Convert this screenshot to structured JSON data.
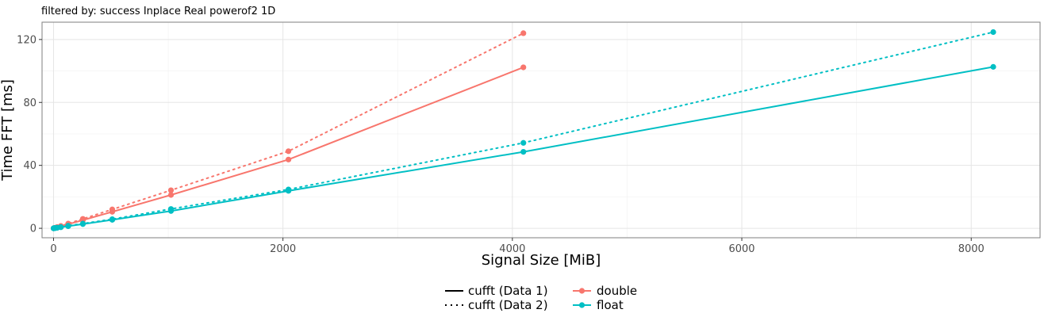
{
  "chart_data": {
    "type": "line",
    "subtitle": "filtered by: success Inplace Real powerof2 1D",
    "xlabel": "Signal Size [MiB]",
    "ylabel": "Time FFT [ms]",
    "xlim": [
      -100,
      8600
    ],
    "ylim": [
      -6,
      131
    ],
    "x_ticks": [
      0,
      2000,
      4000,
      6000,
      8000
    ],
    "y_ticks": [
      0,
      40,
      80,
      120
    ],
    "grid": true,
    "legend_position": "bottom",
    "linetype_legend": [
      {
        "label": "cufft (Data 1)",
        "linetype": "solid"
      },
      {
        "label": "cufft (Data 2)",
        "linetype": "dotted"
      }
    ],
    "color_legend": [
      {
        "label": "double",
        "color": "#F8766D"
      },
      {
        "label": "float",
        "color": "#00BFC4"
      }
    ],
    "series": [
      {
        "precision": "double",
        "data_set": "cufft (Data 1)",
        "color": "#F8766D",
        "linetype": "solid",
        "x": [
          1,
          2,
          4,
          8,
          16,
          32,
          64,
          128,
          256,
          512,
          1024,
          2048,
          4096
        ],
        "y": [
          0.02,
          0.04,
          0.08,
          0.17,
          0.33,
          0.65,
          1.3,
          2.6,
          5.2,
          10.5,
          21.2,
          43.7,
          102.3
        ]
      },
      {
        "precision": "double",
        "data_set": "cufft (Data 2)",
        "color": "#F8766D",
        "linetype": "dotted",
        "x": [
          1,
          2,
          4,
          8,
          16,
          32,
          64,
          128,
          256,
          512,
          1024,
          2048,
          4096
        ],
        "y": [
          0.03,
          0.05,
          0.1,
          0.2,
          0.4,
          0.8,
          1.5,
          3.0,
          6.0,
          12.0,
          24.2,
          49.0,
          124.0
        ]
      },
      {
        "precision": "float",
        "data_set": "cufft (Data 1)",
        "color": "#00BFC4",
        "linetype": "solid",
        "x": [
          1,
          2,
          4,
          8,
          16,
          32,
          64,
          128,
          256,
          512,
          1024,
          2048,
          4096,
          8192
        ],
        "y": [
          0.01,
          0.02,
          0.04,
          0.09,
          0.17,
          0.34,
          0.68,
          1.35,
          2.7,
          5.4,
          11.0,
          23.8,
          48.6,
          102.6
        ]
      },
      {
        "precision": "float",
        "data_set": "cufft (Data 2)",
        "color": "#00BFC4",
        "linetype": "dotted",
        "x": [
          1,
          2,
          4,
          8,
          16,
          32,
          64,
          128,
          256,
          512,
          1024,
          2048,
          4096,
          8192
        ],
        "y": [
          0.01,
          0.03,
          0.05,
          0.1,
          0.2,
          0.4,
          0.8,
          1.6,
          3.0,
          5.8,
          12.3,
          24.7,
          54.3,
          124.7
        ]
      }
    ]
  }
}
